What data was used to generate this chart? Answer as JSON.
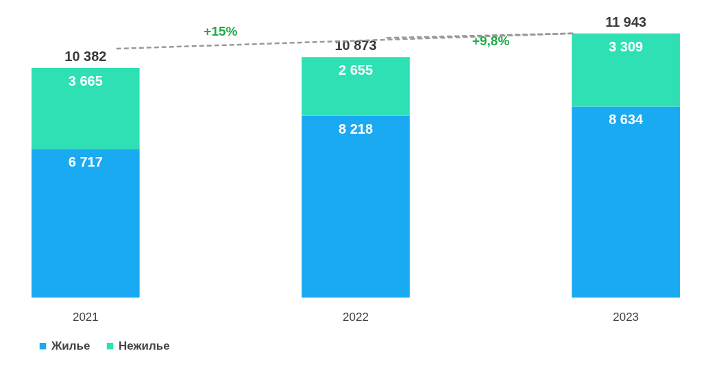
{
  "chart_data": {
    "type": "bar",
    "stacked": true,
    "categories": [
      "2021",
      "2022",
      "2023"
    ],
    "series": [
      {
        "name": "Жилье",
        "color": "#1aaaf2",
        "values": [
          6717,
          8218,
          8634
        ]
      },
      {
        "name": "Нежилье",
        "color": "#2fe0b4",
        "values": [
          3665,
          2655,
          3309
        ]
      }
    ],
    "data_labels": true,
    "totals": [
      "10 382",
      "10 873",
      "11 943"
    ],
    "annotations": [
      "+15%",
      "+9,8%"
    ],
    "legend": "bottom",
    "grid": false
  }
}
